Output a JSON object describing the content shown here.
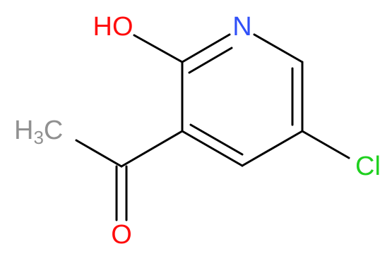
{
  "atoms": {
    "hydroxyl": "HO",
    "nitrogen": "N",
    "chlorine": "Cl",
    "methyl": {
      "h": "H",
      "count": "3",
      "c": "C"
    },
    "oxygen": "O"
  }
}
